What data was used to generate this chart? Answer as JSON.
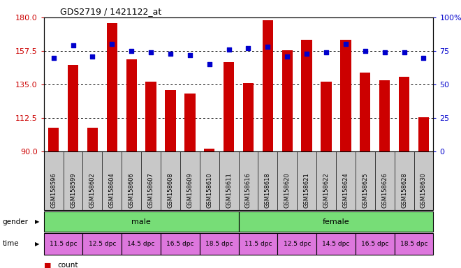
{
  "title": "GDS2719 / 1421122_at",
  "samples": [
    "GSM158596",
    "GSM158599",
    "GSM158602",
    "GSM158604",
    "GSM158606",
    "GSM158607",
    "GSM158608",
    "GSM158609",
    "GSM158610",
    "GSM158611",
    "GSM158616",
    "GSM158618",
    "GSM158620",
    "GSM158621",
    "GSM158622",
    "GSM158624",
    "GSM158625",
    "GSM158626",
    "GSM158628",
    "GSM158630"
  ],
  "counts": [
    106,
    148,
    106,
    176,
    152,
    137,
    131,
    129,
    92,
    150,
    136,
    178,
    158,
    165,
    137,
    165,
    143,
    138,
    140,
    113
  ],
  "percentiles": [
    70,
    79,
    71,
    80,
    75,
    74,
    73,
    72,
    65,
    76,
    77,
    78,
    71,
    73,
    74,
    80,
    75,
    74,
    74,
    70
  ],
  "ylim_left": [
    90,
    180
  ],
  "ylim_right": [
    0,
    100
  ],
  "yticks_left": [
    90,
    112.5,
    135,
    157.5,
    180
  ],
  "yticks_right": [
    0,
    25,
    50,
    75,
    100
  ],
  "bar_color": "#cc0000",
  "dot_color": "#0000cc",
  "xtick_bg": "#c8c8c8",
  "gender_color": "#77dd77",
  "time_color": "#dd77dd",
  "time_groups": [
    {
      "label": "11.5 dpc",
      "start": 0,
      "end": 1
    },
    {
      "label": "12.5 dpc",
      "start": 2,
      "end": 3
    },
    {
      "label": "14.5 dpc",
      "start": 4,
      "end": 5
    },
    {
      "label": "16.5 dpc",
      "start": 6,
      "end": 7
    },
    {
      "label": "18.5 dpc",
      "start": 8,
      "end": 9
    },
    {
      "label": "11.5 dpc",
      "start": 10,
      "end": 11
    },
    {
      "label": "12.5 dpc",
      "start": 12,
      "end": 13
    },
    {
      "label": "14.5 dpc",
      "start": 14,
      "end": 15
    },
    {
      "label": "16.5 dpc",
      "start": 16,
      "end": 17
    },
    {
      "label": "18.5 dpc",
      "start": 18,
      "end": 19
    }
  ]
}
